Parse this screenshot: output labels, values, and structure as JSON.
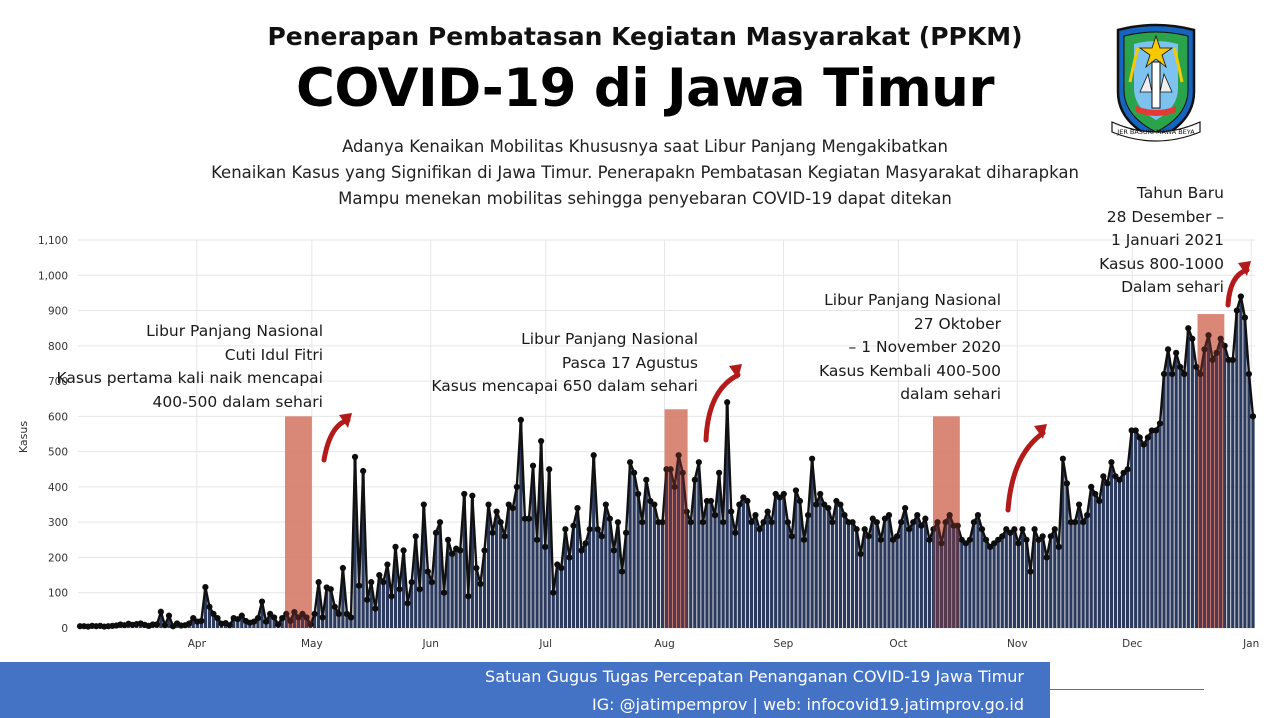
{
  "header": {
    "title_line1": "Penerapan Pembatasan Kegiatan Masyarakat (PPKM)",
    "title_line2": "COVID-19 di Jawa Timur",
    "subtitle": [
      "Adanya Kenaikan Mobilitas Khususnya saat Libur Panjang Mengakibatkan",
      "Kenaikan Kasus yang Signifikan di Jawa Timur. Penerapakn Pembatasan Kegiatan Masyarakat diharapkan",
      "Mampu menekan mobilitas sehingga penyebaran COVID-19 dapat ditekan"
    ]
  },
  "logo": {
    "icon": "jawa-timur-emblem-icon",
    "motto": "JER BASUKI MAWA BEYA"
  },
  "annotations": [
    {
      "lines": [
        "Libur Panjang Nasional",
        "Cuti Idul Fitri",
        "Kasus pertama kali naik mencapai",
        "400-500 dalam sehari"
      ]
    },
    {
      "lines": [
        "Libur Panjang Nasional",
        "Pasca 17 Agustus",
        "Kasus mencapai 650 dalam sehari"
      ]
    },
    {
      "lines": [
        "Libur Panjang Nasional",
        "27 Oktober",
        "– 1 November 2020",
        "Kasus Kembali 400-500",
        "dalam sehari"
      ]
    },
    {
      "lines": [
        "Tahun Baru",
        "28 Desember –",
        "1 Januari 2021",
        "Kasus 800-1000",
        "Dalam sehari"
      ]
    }
  ],
  "footer": {
    "line1": "Satuan Gugus Tugas Percepatan Penanganan COVID-19 Jawa Timur",
    "line2": "IG: @jatimpemprov | web: infocovid19.jatimprov.go.id"
  },
  "colors": {
    "bar": "#2c3a5e",
    "line": "#111111",
    "highlight": "#f7a58c",
    "highlight_dark": "#a03a30",
    "arrow": "#b31b1b",
    "footer": "#4472c4"
  },
  "chart_data": {
    "type": "bar",
    "xlabel": "",
    "ylabel": "Kasus",
    "ylim": [
      0,
      1100
    ],
    "y_ticks": [
      0,
      100,
      200,
      300,
      400,
      500,
      600,
      700,
      800,
      900,
      1000,
      1100
    ],
    "y_tick_labels": [
      "0",
      "100",
      "200",
      "300",
      "400",
      "500",
      "600",
      "700",
      "800",
      "900",
      "1,000",
      "1,100"
    ],
    "grid": true,
    "x_start": "2020-03-01",
    "x_end": "2021-01-02",
    "month_ticks": [
      {
        "label": "Apr",
        "date": "2020-04-01"
      },
      {
        "label": "May",
        "date": "2020-05-01"
      },
      {
        "label": "Jun",
        "date": "2020-06-01"
      },
      {
        "label": "Jul",
        "date": "2020-07-01"
      },
      {
        "label": "Aug",
        "date": "2020-08-01"
      },
      {
        "label": "Sep",
        "date": "2020-09-01"
      },
      {
        "label": "Oct",
        "date": "2020-10-01"
      },
      {
        "label": "Nov",
        "date": "2020-11-01"
      },
      {
        "label": "Dec",
        "date": "2020-12-01"
      },
      {
        "label": "Jan",
        "date": "2021-01-01"
      }
    ],
    "highlights": [
      {
        "start": "2020-04-24",
        "end": "2020-05-01",
        "top": 600
      },
      {
        "start": "2020-08-01",
        "end": "2020-08-07",
        "top": 620
      },
      {
        "start": "2020-10-10",
        "end": "2020-10-17",
        "top": 600
      },
      {
        "start": "2020-12-18",
        "end": "2020-12-25",
        "top": 890
      }
    ],
    "series": [
      {
        "values": [
          5,
          5,
          4,
          6,
          5,
          6,
          4,
          5,
          6,
          7,
          10,
          8,
          12,
          9,
          11,
          13,
          9,
          6,
          10,
          10,
          46,
          8,
          35,
          5,
          13,
          7,
          8,
          13,
          28,
          18,
          20,
          116,
          60,
          40,
          28,
          12,
          14,
          8,
          28,
          25,
          35,
          20,
          15,
          18,
          28,
          75,
          18,
          40,
          30,
          10,
          28,
          40,
          20,
          45,
          30,
          40,
          30,
          10,
          40,
          130,
          30,
          115,
          110,
          60,
          40,
          170,
          40,
          30,
          485,
          120,
          445,
          80,
          130,
          55,
          150,
          130,
          180,
          90,
          230,
          110,
          220,
          70,
          130,
          260,
          110,
          350,
          160,
          130,
          270,
          300,
          100,
          250,
          210,
          225,
          220,
          380,
          90,
          375,
          170,
          125,
          220,
          350,
          270,
          330,
          300,
          260,
          350,
          340,
          400,
          590,
          310,
          310,
          460,
          250,
          530,
          230,
          450,
          100,
          180,
          170,
          280,
          200,
          290,
          340,
          220,
          240,
          280,
          490,
          280,
          260,
          350,
          310,
          220,
          300,
          160,
          270,
          470,
          440,
          380,
          300,
          420,
          360,
          350,
          300,
          300,
          450,
          450,
          400,
          490,
          440,
          330,
          300,
          420,
          470,
          300,
          360,
          360,
          320,
          440,
          300,
          640,
          330,
          270,
          350,
          370,
          360,
          300,
          320,
          280,
          300,
          330,
          300,
          380,
          370,
          380,
          300,
          260,
          390,
          360,
          250,
          320,
          480,
          350,
          380,
          350,
          340,
          300,
          360,
          350,
          320,
          300,
          300,
          280,
          210,
          280,
          260,
          310,
          300,
          250,
          310,
          320,
          250,
          260,
          300,
          340,
          280,
          300,
          320,
          290,
          310,
          250,
          280,
          300,
          240,
          300,
          320,
          290,
          290,
          250,
          240,
          250,
          300,
          320,
          280,
          250,
          230,
          240,
          250,
          260,
          280,
          270,
          280,
          240,
          280,
          250,
          160,
          280,
          250,
          260,
          200,
          260,
          280,
          230,
          480,
          410,
          300,
          300,
          350,
          300,
          320,
          400,
          380,
          360,
          430,
          410,
          470,
          430,
          420,
          440,
          450,
          560,
          560,
          540,
          520,
          540,
          560,
          560,
          580,
          720,
          790,
          720,
          780,
          740,
          720,
          850,
          820,
          740,
          720,
          790,
          830,
          760,
          780,
          820,
          800,
          760,
          760,
          900,
          940,
          880,
          720,
          600
        ]
      }
    ]
  }
}
